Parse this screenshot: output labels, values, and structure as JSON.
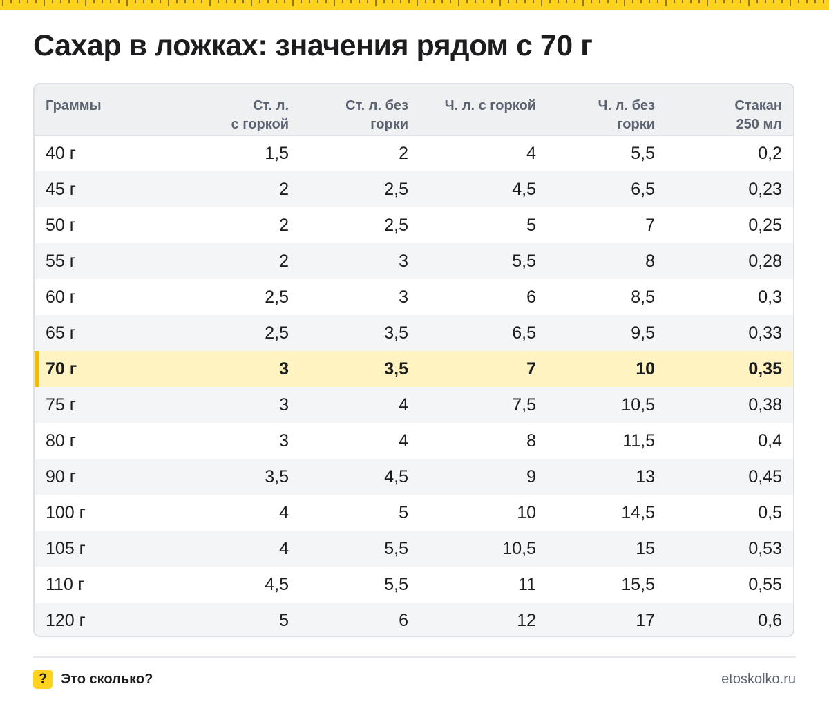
{
  "header": {
    "title": "Сахар в ложках: значения рядом с 70 г"
  },
  "table": {
    "headers": [
      [
        "Граммы"
      ],
      [
        "Ст. л.",
        "с горкой"
      ],
      [
        "Ст. л. без",
        "горки"
      ],
      [
        "Ч. л. с горкой"
      ],
      [
        "Ч. л. без",
        "горки"
      ],
      [
        "Стакан",
        "250 мл"
      ]
    ],
    "rows": [
      [
        "40 г",
        "1,5",
        "2",
        "4",
        "5,5",
        "0,2"
      ],
      [
        "45 г",
        "2",
        "2,5",
        "4,5",
        "6,5",
        "0,23"
      ],
      [
        "50 г",
        "2",
        "2,5",
        "5",
        "7",
        "0,25"
      ],
      [
        "55 г",
        "2",
        "3",
        "5,5",
        "8",
        "0,28"
      ],
      [
        "60 г",
        "2,5",
        "3",
        "6",
        "8,5",
        "0,3"
      ],
      [
        "65 г",
        "2,5",
        "3,5",
        "6,5",
        "9,5",
        "0,33"
      ],
      [
        "70 г",
        "3",
        "3,5",
        "7",
        "10",
        "0,35"
      ],
      [
        "75 г",
        "3",
        "4",
        "7,5",
        "10,5",
        "0,38"
      ],
      [
        "80 г",
        "3",
        "4",
        "8",
        "11,5",
        "0,4"
      ],
      [
        "90 г",
        "3,5",
        "4,5",
        "9",
        "13",
        "0,45"
      ],
      [
        "100 г",
        "4",
        "5",
        "10",
        "14,5",
        "0,5"
      ],
      [
        "105 г",
        "4",
        "5,5",
        "10,5",
        "15",
        "0,53"
      ],
      [
        "110 г",
        "4,5",
        "5,5",
        "11",
        "15,5",
        "0,55"
      ],
      [
        "120 г",
        "5",
        "6",
        "12",
        "17",
        "0,6"
      ]
    ],
    "highlighted_row_index": 6
  },
  "footer": {
    "badge": "?",
    "brand": "Это сколько?",
    "site": "etoskolko.ru"
  },
  "colors": {
    "accent_yellow": "#ffd21e",
    "highlight_row": "#fff3c2",
    "highlight_bar": "#f2be00"
  }
}
